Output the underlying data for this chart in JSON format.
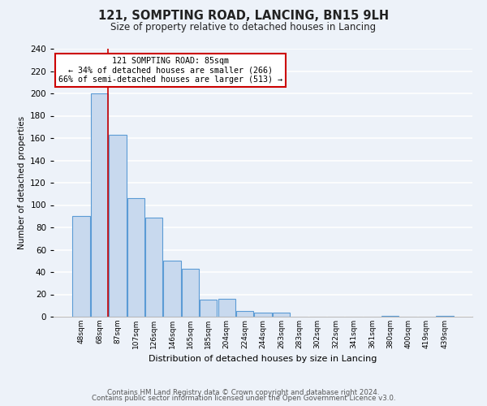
{
  "title": "121, SOMPTING ROAD, LANCING, BN15 9LH",
  "subtitle": "Size of property relative to detached houses in Lancing",
  "xlabel": "Distribution of detached houses by size in Lancing",
  "ylabel": "Number of detached properties",
  "bin_labels": [
    "48sqm",
    "68sqm",
    "87sqm",
    "107sqm",
    "126sqm",
    "146sqm",
    "165sqm",
    "185sqm",
    "204sqm",
    "224sqm",
    "244sqm",
    "263sqm",
    "283sqm",
    "302sqm",
    "322sqm",
    "341sqm",
    "361sqm",
    "380sqm",
    "400sqm",
    "419sqm",
    "439sqm"
  ],
  "bar_heights": [
    90,
    200,
    163,
    106,
    89,
    50,
    43,
    15,
    16,
    5,
    4,
    4,
    0,
    0,
    0,
    0,
    0,
    1,
    0,
    0,
    1
  ],
  "bar_color": "#c8d9ee",
  "bar_edge_color": "#5b9bd5",
  "annotation_title": "121 SOMPTING ROAD: 85sqm",
  "annotation_line1": "← 34% of detached houses are smaller (266)",
  "annotation_line2": "66% of semi-detached houses are larger (513) →",
  "annotation_box_color": "white",
  "annotation_box_edge_color": "#cc0000",
  "marker_line_color": "#cc0000",
  "ylim": [
    0,
    240
  ],
  "yticks": [
    0,
    20,
    40,
    60,
    80,
    100,
    120,
    140,
    160,
    180,
    200,
    220,
    240
  ],
  "footer_line1": "Contains HM Land Registry data © Crown copyright and database right 2024.",
  "footer_line2": "Contains public sector information licensed under the Open Government Licence v3.0.",
  "background_color": "#edf2f9"
}
